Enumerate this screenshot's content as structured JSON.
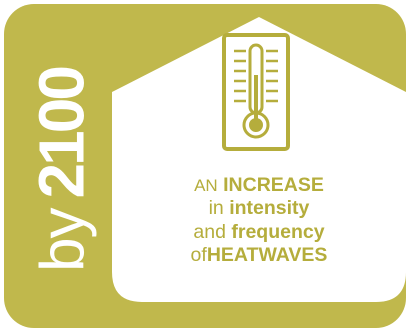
{
  "colors": {
    "background": "#c0b84c",
    "panel": "#ffffff",
    "accent": "#b5ad3c"
  },
  "side_label": {
    "by": "by",
    "year": "2100"
  },
  "icon": "thermometer-icon",
  "caption": {
    "line1_prefix": "AN",
    "line1_bold": "INCREASE",
    "line2_prefix": "in",
    "line2_bold": "intensity",
    "line3_prefix": "and",
    "line3_bold": "frequency",
    "line4_prefix": "of",
    "line4_bold": "HEATWAVES"
  }
}
